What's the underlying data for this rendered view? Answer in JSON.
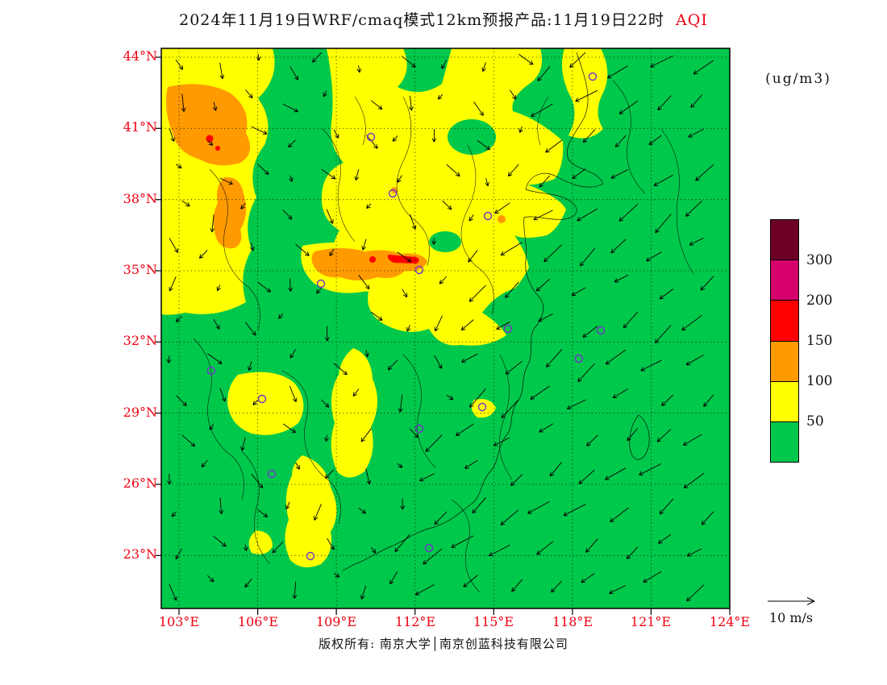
{
  "title": {
    "main": "2024年11月19日WRF/cmaq模式12km预报产品:11月19日22时",
    "variable": "AQI"
  },
  "units_label": "(ug/m3)",
  "axes": {
    "lat_ticks": [
      "44°N",
      "41°N",
      "38°N",
      "35°N",
      "32°N",
      "29°N",
      "26°N",
      "23°N"
    ],
    "lon_ticks": [
      "103°E",
      "106°E",
      "109°E",
      "112°E",
      "115°E",
      "118°E",
      "121°E",
      "124°E"
    ]
  },
  "colorbar": {
    "labels": [
      "300",
      "200",
      "150",
      "100",
      "50"
    ],
    "colors_top_to_bottom": [
      "#6e0028",
      "#d6006c",
      "#ff0000",
      "#ff9a00",
      "#ffff00",
      "#00c84b"
    ]
  },
  "wind_legend": {
    "label": "10  m/s"
  },
  "footer": "版权所有: 南京大学│南京创蓝科技有限公司",
  "chart_data": {
    "type": "heatmap",
    "subtype": "filled-contour AQI forecast map with wind vectors",
    "title": "2024年11月19日WRF/cmaq模式12km预报产品:11月19日22时 AQI",
    "variable": "AQI",
    "units": "ug/m3",
    "x": {
      "label": "longitude",
      "ticks": [
        "103°E",
        "106°E",
        "109°E",
        "112°E",
        "115°E",
        "118°E",
        "121°E",
        "124°E"
      ],
      "range_deg": [
        102.3,
        124.0
      ]
    },
    "y": {
      "label": "latitude",
      "ticks": [
        "44°N",
        "41°N",
        "38°N",
        "35°N",
        "32°N",
        "29°N",
        "26°N",
        "23°N"
      ],
      "range_deg": [
        20.8,
        44.4
      ]
    },
    "contour_levels": [
      50,
      100,
      150,
      200,
      300
    ],
    "level_colors": [
      {
        "range": "0-50",
        "color": "#00c84b"
      },
      {
        "range": "50-100",
        "color": "#ffff00"
      },
      {
        "range": "100-150",
        "color": "#ff9a00"
      },
      {
        "range": "150-200",
        "color": "#ff0000"
      },
      {
        "range": "200-300",
        "color": "#d6006c"
      },
      {
        "range": ">300",
        "color": "#6e0028"
      }
    ],
    "grid": "dotted graticule every 3 degrees, black map frame",
    "wind_vectors": {
      "reference_speed": "10 m/s",
      "pattern": "long northeasterly arrows sweeping southwest over the Yellow Sea / East China Sea; weaker southward and variable flow inland; down-right flow in the northwest corner"
    },
    "high_aqi_regions": [
      {
        "aqi": "50-100",
        "area": "large yellow area over North China Plain: Shanxi-Shaanxi-Hebei-Henan-Shandong-N.Jiangsu, approx 104-119E / 31-44N"
      },
      {
        "aqi": "50-100",
        "area": "yellow band over Chongqing-Guizhou-Guangxi, approx 106-112E / 23-31N"
      },
      {
        "aqi": "100-150",
        "area": "orange patches in NW corner approx 103-107E / 39-42.5N and a strip near 106-107E / 36-38N"
      },
      {
        "aqi": "100-150",
        "area": "orange patch approx 109-113E / 34-35.5N, small spots near 112.8E 37.5N and 115E 37N"
      },
      {
        "aqi": "150-200",
        "area": "small red spots near 104.8E 41.3N and 111-112E 35N"
      },
      {
        "aqi": "0-50",
        "area": "green elsewhere: northeast China, southeast coastal provinces and the seas"
      }
    ],
    "station_markers": {
      "count": 16,
      "style": "small open circles",
      "color": "#7733cc"
    }
  }
}
